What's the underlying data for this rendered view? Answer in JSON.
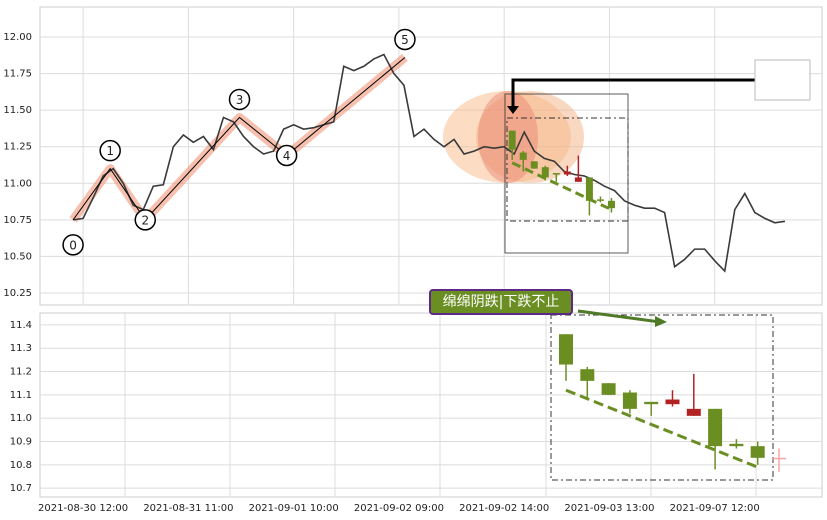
{
  "chart_data": [
    {
      "type": "line",
      "xlim": [
        -3.3,
        74.7
      ],
      "xticks": [
        {
          "value": 1,
          "label": "2021-08-30 12:00"
        },
        {
          "value": 11.5,
          "label": "2021-08-31 11:00"
        },
        {
          "value": 22,
          "label": "2021-09-01 10:00"
        },
        {
          "value": 32.5,
          "label": "2021-09-02 09:00"
        },
        {
          "value": 43,
          "label": "2021-09-02 14:00"
        },
        {
          "value": 53.5,
          "label": "2021-09-03 13:00"
        },
        {
          "value": 64,
          "label": "2021-09-07 12:00"
        }
      ],
      "ylim": [
        10.168,
        12.205
      ],
      "yticks": [
        {
          "value": 10.25,
          "label": "10.25"
        },
        {
          "value": 10.5,
          "label": "10.50"
        },
        {
          "value": 10.75,
          "label": "10.75"
        },
        {
          "value": 11,
          "label": "11.00"
        },
        {
          "value": 11.25,
          "label": "11.25"
        },
        {
          "value": 11.5,
          "label": "11.50"
        },
        {
          "value": 11.75,
          "label": "11.75"
        },
        {
          "value": 12,
          "label": "12.00"
        }
      ],
      "grid": true,
      "color": "#3a3a3a",
      "x": [
        0,
        1,
        2,
        3,
        4,
        5,
        6,
        7,
        8,
        9,
        10,
        11,
        12,
        13,
        14,
        15,
        16,
        17,
        18,
        19,
        20,
        21,
        22,
        23,
        24,
        25,
        26,
        27,
        28,
        29,
        30,
        31,
        32,
        33,
        34,
        35,
        36,
        37,
        38,
        39,
        40,
        41,
        42,
        43,
        44,
        45,
        46,
        47,
        48,
        49,
        50,
        51,
        52,
        53,
        54,
        55,
        56,
        57,
        58,
        59,
        60,
        61,
        62,
        63,
        64,
        65,
        66,
        67,
        68,
        69,
        70,
        71
      ],
      "values": [
        10.75,
        10.76,
        10.9,
        11.05,
        11.1,
        11.0,
        10.85,
        10.82,
        10.98,
        10.99,
        11.25,
        11.33,
        11.28,
        11.32,
        11.23,
        11.45,
        11.42,
        11.32,
        11.25,
        11.2,
        11.22,
        11.37,
        11.4,
        11.37,
        11.38,
        11.4,
        11.42,
        11.8,
        11.77,
        11.8,
        11.85,
        11.88,
        11.75,
        11.67,
        11.32,
        11.37,
        11.3,
        11.25,
        11.3,
        11.2,
        11.22,
        11.25,
        11.24,
        11.25,
        11.2,
        11.35,
        11.22,
        11.17,
        11.15,
        11.08,
        11.06,
        11.05,
        11.02,
        10.98,
        10.95,
        10.88,
        10.85,
        10.83,
        10.83,
        10.8,
        10.43,
        10.48,
        10.55,
        10.55,
        10.47,
        10.4,
        10.82,
        10.93,
        10.8,
        10.76,
        10.73,
        10.74
      ],
      "zigzag": {
        "labels": [
          "0",
          "1",
          "2",
          "3",
          "4",
          "5"
        ],
        "x": [
          0,
          3.7,
          7.2,
          16.6,
          21.3,
          33.1
        ],
        "values": [
          10.75,
          11.1,
          10.75,
          11.45,
          11.19,
          11.86
        ]
      },
      "candles": {
        "x": [
          43.8,
          44.9,
          46,
          47.1,
          48.2,
          49.3,
          50.4,
          51.5,
          52.6,
          53.7
        ],
        "open": [
          11.36,
          11.21,
          11.15,
          11.11,
          11.07,
          11.06,
          11.01,
          11.04,
          10.89,
          10.88
        ],
        "high": [
          11.36,
          11.22,
          11.15,
          11.12,
          11.07,
          11.12,
          11.19,
          11.04,
          10.91,
          10.9
        ],
        "low": [
          11.16,
          11.08,
          11.1,
          11.02,
          11.01,
          11.05,
          11.01,
          10.78,
          10.87,
          10.8
        ],
        "close": [
          11.23,
          11.16,
          11.1,
          11.04,
          11.06,
          11.08,
          11.04,
          10.88,
          10.88,
          10.83
        ],
        "colors": [
          "#6b8e23",
          "#6b8e23",
          "#6b8e23",
          "#6b8e23",
          "#6b8e23",
          "#b22222",
          "#b22222",
          "#6b8e23",
          "#6b8e23",
          "#6b8e23"
        ]
      },
      "trend": {
        "x": [
          43.8,
          53.7
        ],
        "values": [
          11.14,
          10.82
        ]
      }
    },
    {
      "type": "candlestick",
      "annotation": "绵绵阴跌|下跌不止",
      "ylim": [
        10.662,
        11.451
      ],
      "yticks": [
        10.7,
        10.8,
        10.9,
        {
          "value": 11,
          "label": "11.0"
        },
        11.1,
        11.2,
        11.3,
        11.4
      ],
      "grid": true,
      "candles": {
        "open": [
          11.36,
          11.21,
          11.15,
          11.11,
          11.07,
          11.06,
          11.01,
          11.04,
          10.89,
          10.88,
          10.83
        ],
        "high": [
          11.36,
          11.22,
          11.15,
          11.12,
          11.07,
          11.12,
          11.19,
          11.04,
          10.91,
          10.9,
          10.87
        ],
        "low": [
          11.16,
          11.08,
          11.1,
          11.02,
          11.01,
          11.05,
          11.01,
          10.78,
          10.87,
          10.8,
          10.77
        ],
        "close": [
          11.23,
          11.16,
          11.1,
          11.04,
          11.06,
          11.08,
          11.04,
          10.88,
          10.88,
          10.83,
          10.83
        ],
        "colors": [
          "#6b8e23",
          "#6b8e23",
          "#6b8e23",
          "#6b8e23",
          "#6b8e23",
          "#b22222",
          "#b22222",
          "#6b8e23",
          "#6b8e23",
          "#6b8e23",
          "#f4a6a6"
        ]
      },
      "trend": {
        "values": [
          11.12,
          10.79
        ]
      }
    }
  ]
}
